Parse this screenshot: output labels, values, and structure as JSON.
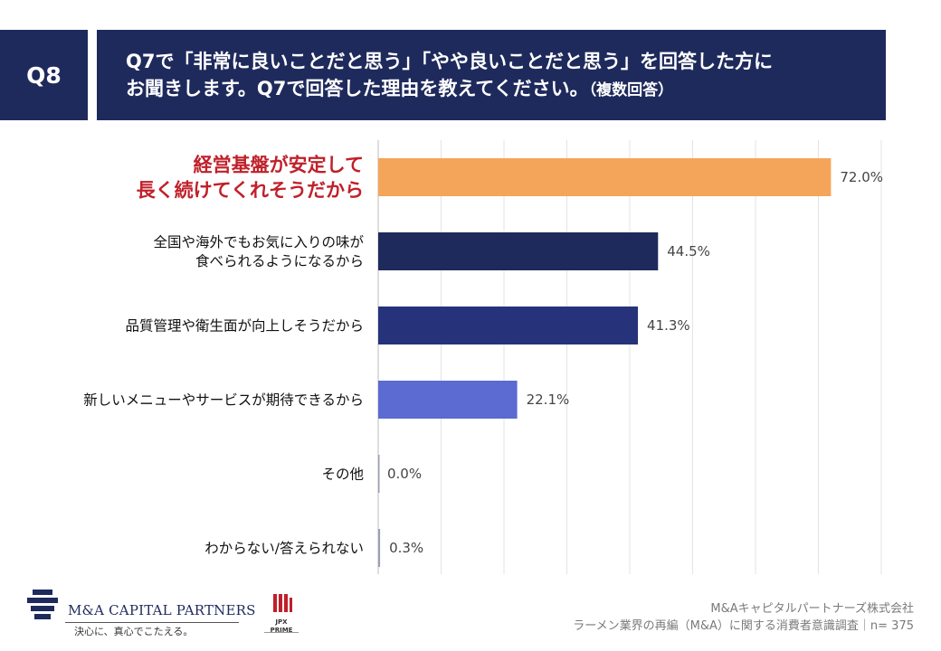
{
  "question": {
    "badge": "Q8",
    "line1": "Q7で「非常に良いことだと思う」「やや良いことだと思う」を回答した方に",
    "line2_main": "お聞きします。Q7で回答した理由を教えてください。",
    "line2_note": "（複数回答）"
  },
  "chart_data": {
    "type": "bar",
    "orientation": "horizontal",
    "xlim": [
      0,
      80
    ],
    "grid": true,
    "categories": [
      [
        "経営基盤が安定して",
        "長く続けてくれそうだから"
      ],
      [
        "全国や海外でもお気に入りの味が",
        "食べられるようになるから"
      ],
      [
        "品質管理や衛生面が向上しそうだから"
      ],
      [
        "新しいメニューやサービスが期待できるから"
      ],
      [
        "その他"
      ],
      [
        "わからない/答えられない"
      ]
    ],
    "values": [
      72.0,
      44.5,
      41.3,
      22.1,
      0.0,
      0.3
    ],
    "value_labels": [
      "72.0%",
      "44.5%",
      "41.3%",
      "22.1%",
      "0.0%",
      "0.3%"
    ],
    "bar_colors": [
      "#f5a55a",
      "#1f2a5c",
      "#26337a",
      "#5b6bd1",
      "#9aa0b4",
      "#9aa0b4"
    ],
    "label_colors": [
      "#c0202a",
      "#111111",
      "#111111",
      "#111111",
      "#111111",
      "#111111"
    ]
  },
  "footer": {
    "company_logo": "M&A CAPITAL PARTNERS",
    "tagline": "決心に、真心でこたえる。",
    "jpx_label": "JPX",
    "jpx_sub": "PRIME",
    "company": "M&Aキャピタルパートナーズ株式会社",
    "survey": "ラーメン業界の再編（M&A）に関する消費者意識調査｜n= 375"
  }
}
